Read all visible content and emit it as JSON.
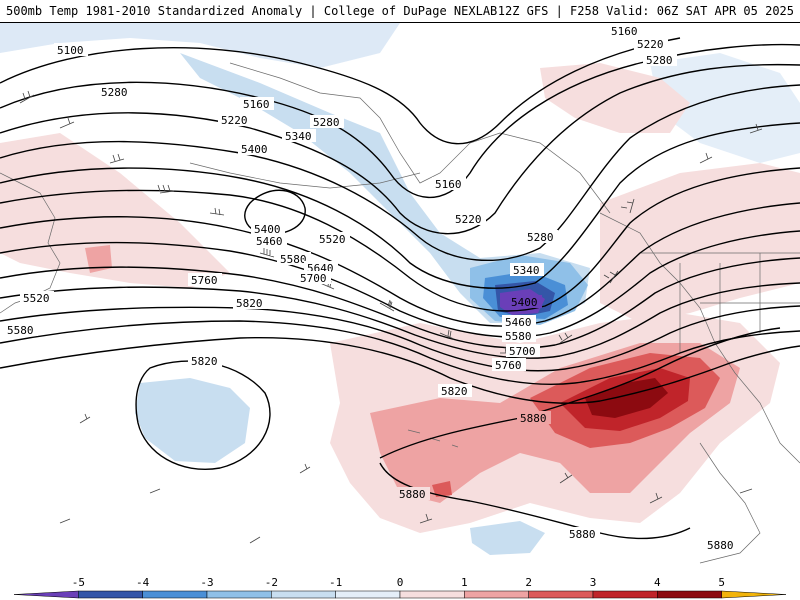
{
  "header": {
    "left": "500mb Temp 1981-2010 Standardized Anomaly | College of DuPage NEXLAB",
    "right": "12Z GFS | F258 Valid: 06Z SAT APR 05 2025"
  },
  "contours": {
    "labels": [
      {
        "id": "c1",
        "text": "5100"
      },
      {
        "id": "c2",
        "text": "5160"
      },
      {
        "id": "c3",
        "text": "5220"
      },
      {
        "id": "c4",
        "text": "5280"
      },
      {
        "id": "c5",
        "text": "5280"
      },
      {
        "id": "c6",
        "text": "5160"
      },
      {
        "id": "c7",
        "text": "5220"
      },
      {
        "id": "c8",
        "text": "5280"
      },
      {
        "id": "c9",
        "text": "5340"
      },
      {
        "id": "c10",
        "text": "5400"
      },
      {
        "id": "c11",
        "text": "5160"
      },
      {
        "id": "c12",
        "text": "5220"
      },
      {
        "id": "c13",
        "text": "5280"
      },
      {
        "id": "c14",
        "text": "5340"
      },
      {
        "id": "c15",
        "text": "5400"
      },
      {
        "id": "c16",
        "text": "5460"
      },
      {
        "id": "c17",
        "text": "5400"
      },
      {
        "id": "c18",
        "text": "5460"
      },
      {
        "id": "c19",
        "text": "5520"
      },
      {
        "id": "c20",
        "text": "5580"
      },
      {
        "id": "c21",
        "text": "5640"
      },
      {
        "id": "c22",
        "text": "5700"
      },
      {
        "id": "c23",
        "text": "5760"
      },
      {
        "id": "c24",
        "text": "5820"
      },
      {
        "id": "c25",
        "text": "5580"
      },
      {
        "id": "c26",
        "text": "5700"
      },
      {
        "id": "c27",
        "text": "5760"
      },
      {
        "id": "c28",
        "text": "5520"
      },
      {
        "id": "c29",
        "text": "5580"
      },
      {
        "id": "c30",
        "text": "5820"
      },
      {
        "id": "c31",
        "text": "5820"
      },
      {
        "id": "c32",
        "text": "5880"
      },
      {
        "id": "c33",
        "text": "5880"
      },
      {
        "id": "c34",
        "text": "5880"
      },
      {
        "id": "c35",
        "text": "5880"
      }
    ]
  },
  "colorbar": {
    "ticks": [
      "-5",
      "-4",
      "-3",
      "-2",
      "-1",
      "0",
      "1",
      "2",
      "3",
      "4",
      "5"
    ],
    "colors": [
      "#6a3fb8",
      "#3456a8",
      "#4a8fd6",
      "#8fc0e8",
      "#c8def0",
      "#e4eef8",
      "#f6dede",
      "#eea3a3",
      "#dc5a5a",
      "#c0242a",
      "#8c0a10",
      "#f2b40a"
    ]
  }
}
